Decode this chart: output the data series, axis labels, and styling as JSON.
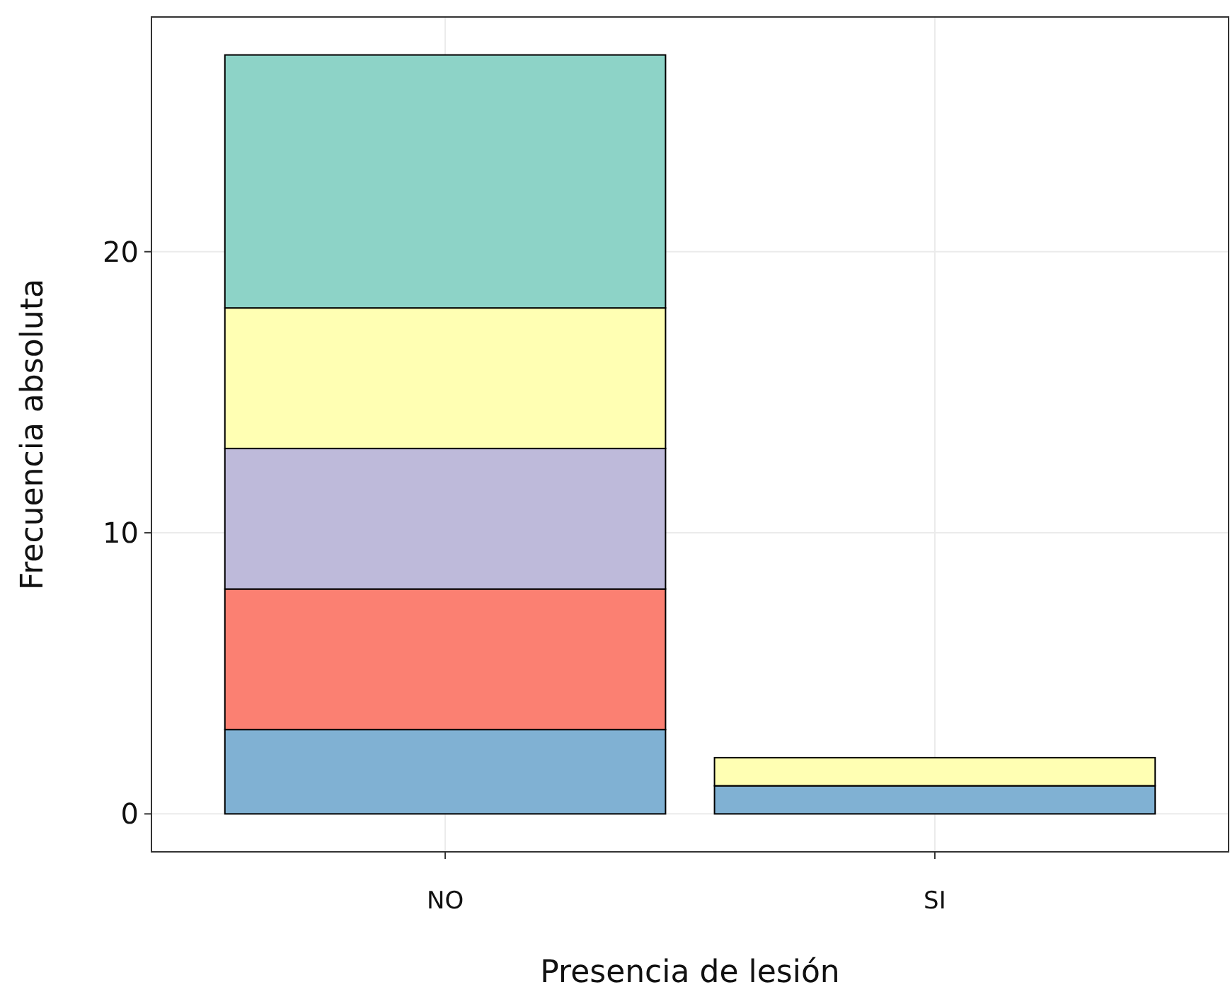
{
  "chart_data": {
    "type": "bar",
    "xlabel": "Presencia de lesión",
    "ylabel": "Frecuencia absoluta",
    "categories": [
      "NO",
      "SI"
    ],
    "stacked": true,
    "series": [
      {
        "color": "#80b1d3",
        "values": [
          3,
          1
        ]
      },
      {
        "color": "#fb8072",
        "values": [
          5,
          null
        ]
      },
      {
        "color": "#bebada",
        "values": [
          5,
          null
        ]
      },
      {
        "color": "#ffffb3",
        "values": [
          5,
          1
        ]
      },
      {
        "color": "#8dd3c7",
        "values": [
          9,
          null
        ]
      }
    ],
    "ylim": [
      -1.35,
      28.35
    ],
    "yticks": [
      0,
      10,
      20
    ],
    "grid": true
  }
}
